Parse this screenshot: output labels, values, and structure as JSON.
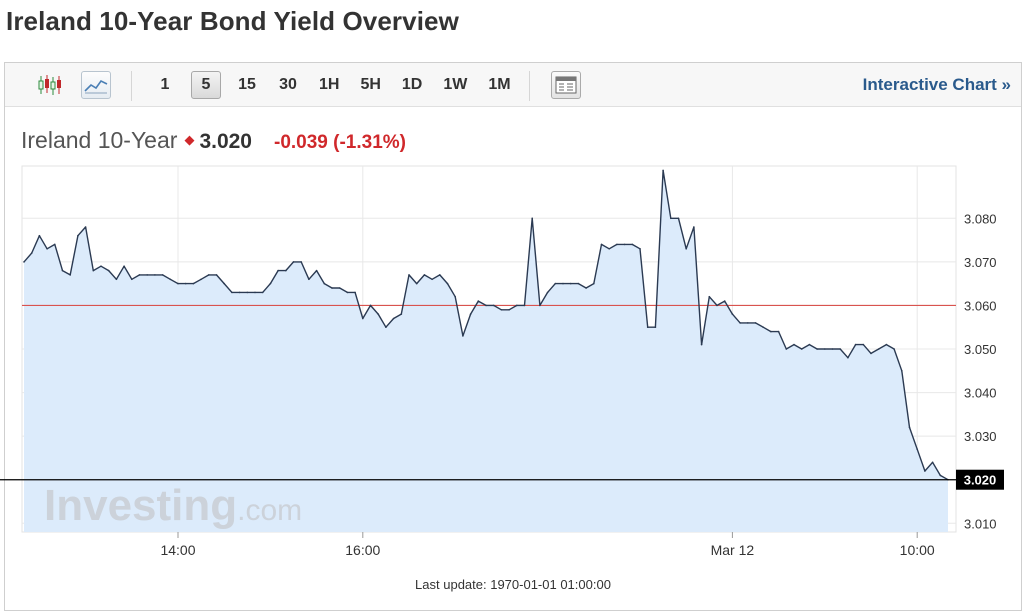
{
  "page": {
    "title": "Ireland 10-Year Bond Yield Overview"
  },
  "toolbar": {
    "chart_types": [
      {
        "icon": "candlestick-chart-icon",
        "active": false
      },
      {
        "icon": "line-chart-icon",
        "active": true
      }
    ],
    "timeframes": [
      {
        "label": "1",
        "active": false
      },
      {
        "label": "5",
        "active": true
      },
      {
        "label": "15",
        "active": false
      },
      {
        "label": "30",
        "active": false
      },
      {
        "label": "1H",
        "active": false
      },
      {
        "label": "5H",
        "active": false
      },
      {
        "label": "1D",
        "active": false
      },
      {
        "label": "1W",
        "active": false
      },
      {
        "label": "1M",
        "active": false
      }
    ],
    "panel_icon": "data-panel-icon",
    "interactive_link": "Interactive Chart »"
  },
  "quote": {
    "name": "Ireland 10-Year",
    "value": "3.020",
    "change": "-0.039 (-1.31%)",
    "direction": "down",
    "down_color": "#d0282b"
  },
  "watermark": {
    "brand": "Investing",
    "suffix": ".com"
  },
  "last_update": "Last update: 1970-01-01 01:00:00",
  "chart_data": {
    "type": "area",
    "title": "",
    "xlabel": "",
    "ylabel": "",
    "x_ticks": [
      {
        "index": 20,
        "label": "14:00"
      },
      {
        "index": 44,
        "label": "16:00"
      },
      {
        "index": 92,
        "label": "Mar 12"
      },
      {
        "index": 116,
        "label": "10:00"
      }
    ],
    "y_ticks": [
      "3.010",
      "3.020",
      "3.030",
      "3.040",
      "3.050",
      "3.060",
      "3.070",
      "3.080"
    ],
    "ylim": [
      3.008,
      3.092
    ],
    "previous_close": 3.06,
    "last_value": 3.02,
    "last_value_label": "3.020",
    "grid": true,
    "colors": {
      "line": "#2b3a52",
      "fill": "#dcebfb",
      "reference": "#d9534f",
      "last_line": "#000000"
    },
    "values": [
      3.07,
      3.072,
      3.076,
      3.073,
      3.074,
      3.068,
      3.067,
      3.076,
      3.078,
      3.068,
      3.069,
      3.068,
      3.066,
      3.069,
      3.066,
      3.067,
      3.067,
      3.067,
      3.067,
      3.066,
      3.065,
      3.065,
      3.065,
      3.066,
      3.067,
      3.067,
      3.065,
      3.063,
      3.063,
      3.063,
      3.063,
      3.063,
      3.065,
      3.068,
      3.068,
      3.07,
      3.07,
      3.066,
      3.068,
      3.065,
      3.064,
      3.064,
      3.063,
      3.063,
      3.057,
      3.06,
      3.058,
      3.055,
      3.057,
      3.058,
      3.067,
      3.065,
      3.067,
      3.066,
      3.067,
      3.065,
      3.062,
      3.053,
      3.058,
      3.061,
      3.06,
      3.06,
      3.059,
      3.059,
      3.06,
      3.06,
      3.08,
      3.06,
      3.063,
      3.065,
      3.065,
      3.065,
      3.065,
      3.064,
      3.065,
      3.074,
      3.073,
      3.074,
      3.074,
      3.074,
      3.073,
      3.055,
      3.055,
      3.091,
      3.08,
      3.08,
      3.073,
      3.078,
      3.051,
      3.062,
      3.06,
      3.061,
      3.058,
      3.056,
      3.056,
      3.056,
      3.055,
      3.054,
      3.054,
      3.05,
      3.051,
      3.05,
      3.051,
      3.05,
      3.05,
      3.05,
      3.05,
      3.048,
      3.051,
      3.051,
      3.049,
      3.05,
      3.051,
      3.05,
      3.045,
      3.032,
      3.027,
      3.022,
      3.024,
      3.021,
      3.02
    ]
  }
}
